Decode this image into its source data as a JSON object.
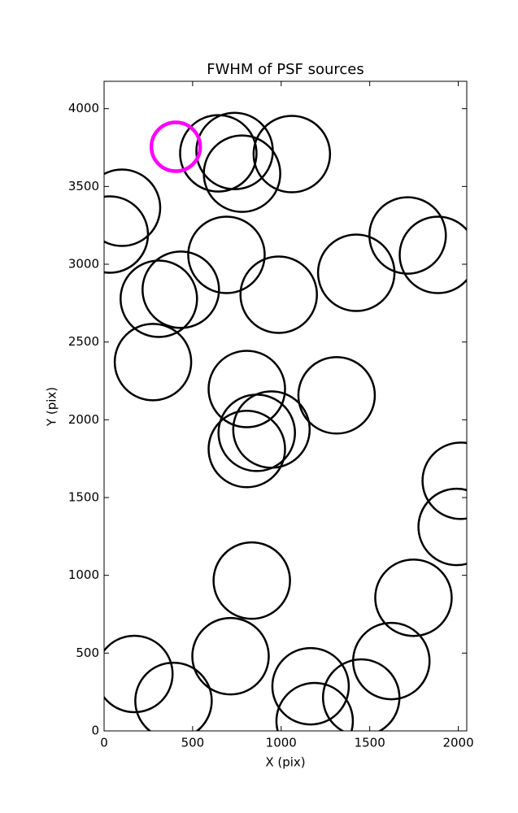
{
  "chart_data": {
    "type": "scatter",
    "title": "FWHM of PSF sources",
    "x_label": "X (pix)",
    "y_label": "Y (pix)",
    "xlim": [
      0,
      2048
    ],
    "ylim": [
      0,
      4176
    ],
    "xticks": [
      0,
      500,
      1000,
      1500,
      2000
    ],
    "yticks": [
      0,
      500,
      1000,
      1500,
      2000,
      2500,
      3000,
      3500,
      4000
    ],
    "series": [
      {
        "color": "#000000",
        "x": [
          645,
          737,
          779,
          1060,
          101,
          32,
          691,
          433,
          309,
          986,
          1424,
          1714,
          1885,
          276,
          806,
          1313,
          945,
          862,
          806,
          2014,
          1991,
          834,
          1747,
          171,
          714,
          392,
          1166,
          1622,
          1452,
          1189
        ],
        "values": [
          3713,
          3728,
          3582,
          3708,
          3363,
          3191,
          3060,
          2836,
          2778,
          2804,
          2945,
          3185,
          3060,
          2371,
          2198,
          2157,
          1937,
          1916,
          1812,
          1608,
          1311,
          966,
          856,
          366,
          480,
          193,
          287,
          449,
          214,
          63
        ]
      },
      {
        "color": "#ff00ff",
        "x": [
          405
        ],
        "values": [
          3755
        ]
      }
    ]
  }
}
